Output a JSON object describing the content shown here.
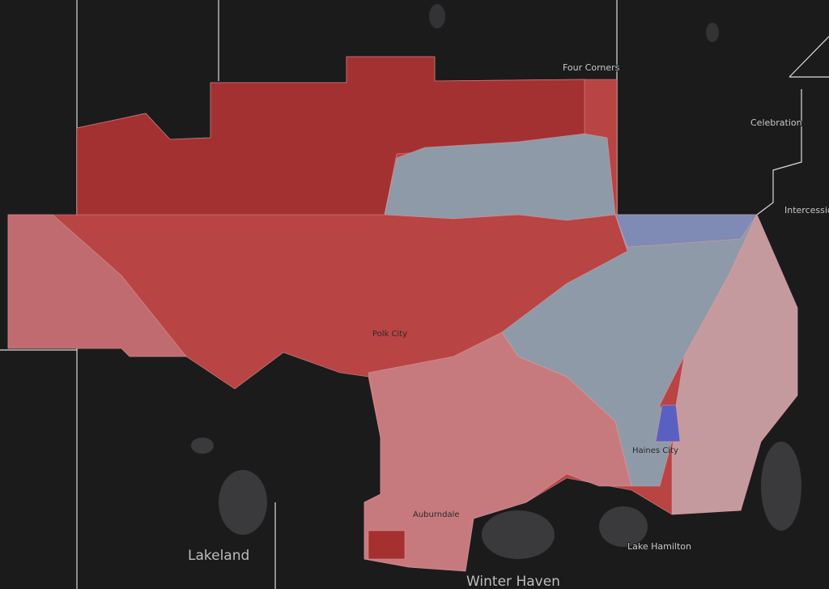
{
  "map": {
    "labels": [
      "Four Corners",
      "Celebration",
      "Intercessio",
      "Polk City",
      "Lakeland",
      "Auburndale",
      "Haines City",
      "Lake Hamilton",
      "Winter Haven"
    ]
  }
}
